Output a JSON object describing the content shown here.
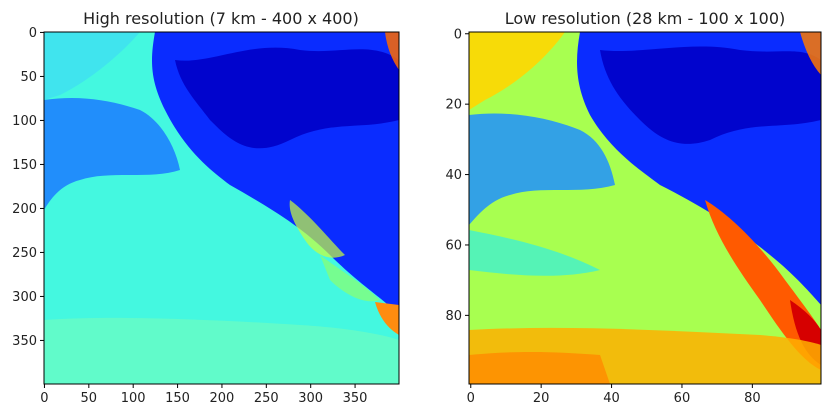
{
  "chart_data": [
    {
      "type": "heatmap",
      "title": "High resolution (7 km - 400 x 400)",
      "xlabel": "",
      "ylabel": "",
      "grid_shape": [
        400,
        400
      ],
      "colormap": "jet",
      "xlim": [
        0,
        399
      ],
      "ylim": [
        399,
        0
      ],
      "xticks": [
        0,
        50,
        100,
        150,
        200,
        250,
        300,
        350
      ],
      "yticks": [
        0,
        50,
        100,
        150,
        200,
        250,
        300,
        350
      ],
      "grid": false,
      "legend": "none"
    },
    {
      "type": "heatmap",
      "title": "Low resolution (28 km - 100 x 100)",
      "xlabel": "",
      "ylabel": "",
      "grid_shape": [
        100,
        100
      ],
      "colormap": "jet",
      "xlim": [
        0,
        99
      ],
      "ylim": [
        99,
        0
      ],
      "xticks": [
        0,
        20,
        40,
        60,
        80
      ],
      "yticks": [
        0,
        20,
        40,
        60,
        80
      ],
      "grid": false,
      "legend": "none"
    }
  ],
  "colors": {
    "jet_dark_blue": "#00007f",
    "jet_blue": "#0000ff",
    "jet_cyan": "#00ffff",
    "jet_yellow": "#ffff00",
    "jet_red": "#ff0000"
  }
}
